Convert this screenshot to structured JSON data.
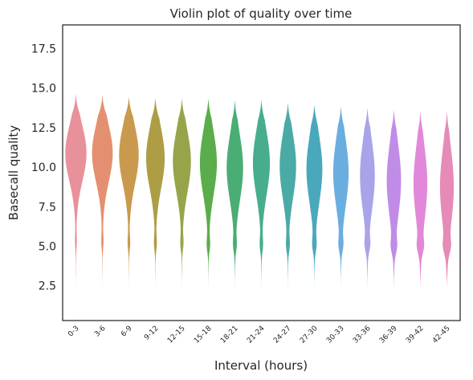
{
  "chart_data": {
    "type": "violin",
    "title": "Violin plot of quality over time",
    "xlabel": "Interval (hours)",
    "ylabel": "Basecall quality",
    "ylim": [
      0.3,
      19
    ],
    "yticks": [
      "2.5",
      "5.0",
      "7.5",
      "10.0",
      "12.5",
      "15.0",
      "17.5"
    ],
    "categories": [
      "0-3",
      "3-6",
      "6-9",
      "9-12",
      "12-15",
      "15-18",
      "18-21",
      "21-24",
      "24-27",
      "27-30",
      "30-33",
      "33-36",
      "36-39",
      "39-42",
      "42-45"
    ],
    "colors": [
      "#e8919a",
      "#e49070",
      "#c99a4e",
      "#ad9e45",
      "#98a44a",
      "#5aad4a",
      "#4aad74",
      "#48ad8f",
      "#4aaaa6",
      "#4aa8bc",
      "#6aaee0",
      "#a9a4e8",
      "#c08ce8",
      "#e288d8",
      "#e58bb6"
    ],
    "series": [
      {
        "name": "0-3",
        "min": 2.3,
        "max": 14.6,
        "mode": 10.9,
        "spread": 1.75,
        "lowMode": 5.3,
        "lowWeight": 0.06,
        "maxWidth": 0.8
      },
      {
        "name": "3-6",
        "min": 2.3,
        "max": 14.5,
        "mode": 10.9,
        "spread": 1.8,
        "lowMode": 5.3,
        "lowWeight": 0.08,
        "maxWidth": 0.78
      },
      {
        "name": "6-9",
        "min": 2.3,
        "max": 14.4,
        "mode": 10.8,
        "spread": 1.85,
        "lowMode": 5.2,
        "lowWeight": 0.1,
        "maxWidth": 0.74
      },
      {
        "name": "9-12",
        "min": 2.3,
        "max": 14.3,
        "mode": 10.6,
        "spread": 1.9,
        "lowMode": 5.2,
        "lowWeight": 0.12,
        "maxWidth": 0.7
      },
      {
        "name": "12-15",
        "min": 2.3,
        "max": 14.3,
        "mode": 10.4,
        "spread": 1.95,
        "lowMode": 5.2,
        "lowWeight": 0.13,
        "maxWidth": 0.68
      },
      {
        "name": "15-18",
        "min": 2.4,
        "max": 14.3,
        "mode": 10.3,
        "spread": 2.0,
        "lowMode": 5.1,
        "lowWeight": 0.15,
        "maxWidth": 0.64
      },
      {
        "name": "18-21",
        "min": 2.4,
        "max": 14.2,
        "mode": 10.0,
        "spread": 2.05,
        "lowMode": 5.1,
        "lowWeight": 0.16,
        "maxWidth": 0.62
      },
      {
        "name": "21-24",
        "min": 2.3,
        "max": 14.2,
        "mode": 10.3,
        "spread": 2.0,
        "lowMode": 5.1,
        "lowWeight": 0.15,
        "maxWidth": 0.64
      },
      {
        "name": "24-27",
        "min": 2.3,
        "max": 14.0,
        "mode": 10.1,
        "spread": 2.05,
        "lowMode": 5.1,
        "lowWeight": 0.17,
        "maxWidth": 0.62
      },
      {
        "name": "27-30",
        "min": 2.4,
        "max": 13.9,
        "mode": 9.9,
        "spread": 2.1,
        "lowMode": 5.1,
        "lowWeight": 0.19,
        "maxWidth": 0.6
      },
      {
        "name": "30-33",
        "min": 2.4,
        "max": 13.8,
        "mode": 9.7,
        "spread": 2.15,
        "lowMode": 5.1,
        "lowWeight": 0.21,
        "maxWidth": 0.58
      },
      {
        "name": "33-36",
        "min": 2.3,
        "max": 13.7,
        "mode": 9.5,
        "spread": 2.2,
        "lowMode": 5.1,
        "lowWeight": 0.24,
        "maxWidth": 0.56
      },
      {
        "name": "36-39",
        "min": 2.3,
        "max": 13.6,
        "mode": 9.2,
        "spread": 2.25,
        "lowMode": 5.0,
        "lowWeight": 0.27,
        "maxWidth": 0.54
      },
      {
        "name": "39-42",
        "min": 2.3,
        "max": 13.5,
        "mode": 9.0,
        "spread": 2.3,
        "lowMode": 5.0,
        "lowWeight": 0.3,
        "maxWidth": 0.52
      },
      {
        "name": "42-45",
        "min": 2.3,
        "max": 13.5,
        "mode": 8.8,
        "spread": 2.35,
        "lowMode": 5.0,
        "lowWeight": 0.32,
        "maxWidth": 0.52
      }
    ]
  }
}
